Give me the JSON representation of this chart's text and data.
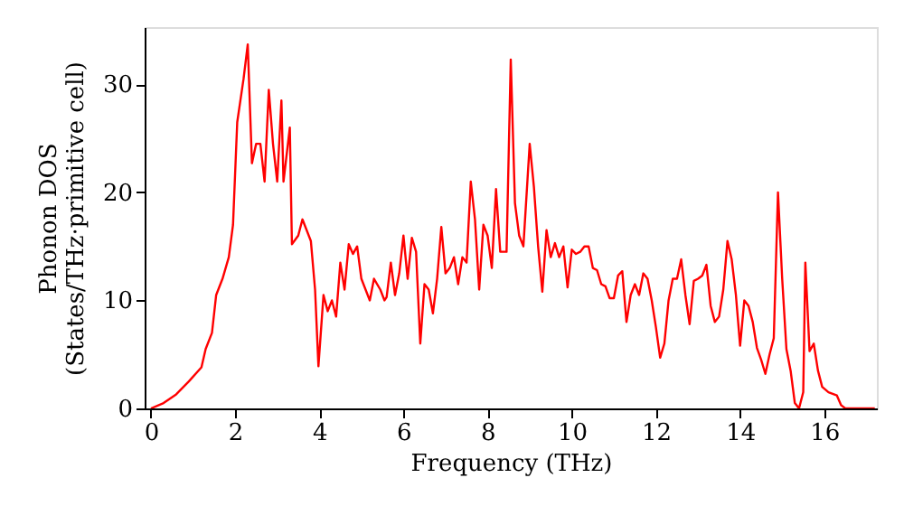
{
  "chart_data": {
    "type": "line",
    "xlabel": "Frequency (THz)",
    "ylabel": "Phonon DOS\n(States/THz·primitive cell)",
    "x": [
      0,
      0.3,
      0.6,
      0.9,
      1.2,
      1.3,
      1.45,
      1.55,
      1.7,
      1.85,
      1.95,
      2.05,
      2.2,
      2.3,
      2.4,
      2.5,
      2.6,
      2.7,
      2.8,
      2.9,
      3.0,
      3.1,
      3.15,
      3.3,
      3.35,
      3.5,
      3.6,
      3.7,
      3.8,
      3.9,
      3.98,
      4.1,
      4.2,
      4.3,
      4.4,
      4.5,
      4.6,
      4.7,
      4.8,
      4.9,
      5.0,
      5.1,
      5.2,
      5.3,
      5.45,
      5.55,
      5.6,
      5.7,
      5.8,
      5.9,
      6.0,
      6.1,
      6.2,
      6.3,
      6.4,
      6.5,
      6.6,
      6.7,
      6.8,
      6.9,
      7.0,
      7.1,
      7.2,
      7.3,
      7.4,
      7.5,
      7.6,
      7.7,
      7.8,
      7.9,
      8.0,
      8.1,
      8.2,
      8.3,
      8.45,
      8.55,
      8.65,
      8.75,
      8.85,
      9.0,
      9.1,
      9.2,
      9.3,
      9.4,
      9.5,
      9.6,
      9.7,
      9.8,
      9.9,
      10.0,
      10.1,
      10.2,
      10.3,
      10.4,
      10.5,
      10.6,
      10.7,
      10.8,
      10.9,
      11.0,
      11.1,
      11.2,
      11.3,
      11.4,
      11.5,
      11.6,
      11.7,
      11.8,
      11.9,
      12.0,
      12.1,
      12.2,
      12.3,
      12.4,
      12.5,
      12.6,
      12.7,
      12.8,
      12.9,
      13.0,
      13.1,
      13.2,
      13.3,
      13.4,
      13.5,
      13.6,
      13.7,
      13.8,
      13.9,
      14.0,
      14.1,
      14.2,
      14.3,
      14.4,
      14.5,
      14.6,
      14.7,
      14.8,
      14.9,
      15.0,
      15.1,
      15.2,
      15.3,
      15.4,
      15.5,
      15.55,
      15.65,
      15.75,
      15.85,
      15.95,
      16.1,
      16.3,
      16.4,
      16.5,
      17.2
    ],
    "series": [
      {
        "color": "#ff0000",
        "values": [
          0,
          0.5,
          1.3,
          2.5,
          3.8,
          5.5,
          7,
          10.5,
          12,
          14,
          17,
          26.5,
          30.5,
          33.7,
          22.7,
          24.5,
          24.5,
          21,
          29.5,
          24.5,
          21,
          28.5,
          21,
          26,
          15.2,
          16,
          17.5,
          16.5,
          15.5,
          11,
          3.9,
          10.5,
          9,
          10,
          8.5,
          13.5,
          11,
          15.2,
          14.3,
          15,
          12,
          11,
          10,
          12,
          11,
          10,
          10.3,
          13.5,
          10.5,
          12.5,
          16,
          12,
          15.8,
          14.5,
          6,
          11.5,
          11,
          8.8,
          12,
          16.8,
          12.5,
          13,
          14,
          11.5,
          14,
          13.5,
          21,
          17.5,
          11,
          17,
          16,
          13,
          20.3,
          14.5,
          14.5,
          32.3,
          19,
          16,
          15,
          24.5,
          20.5,
          15,
          10.8,
          16.5,
          14,
          15.3,
          14,
          15,
          11.2,
          14.7,
          14.3,
          14.5,
          15,
          15,
          13,
          12.8,
          11.5,
          11.3,
          10.2,
          10.2,
          12.3,
          12.7,
          8,
          10.5,
          11.5,
          10.5,
          12.5,
          12,
          10,
          7.5,
          4.7,
          6,
          10,
          12,
          12,
          13.8,
          10.5,
          7.8,
          11.8,
          12,
          12.3,
          13.3,
          9.5,
          8,
          8.5,
          11,
          15.5,
          13.8,
          10.5,
          5.8,
          10,
          9.5,
          8,
          5.6,
          4.5,
          3.2,
          5,
          6.5,
          20,
          12,
          5.5,
          3.5,
          0.5,
          0,
          1.5,
          13.5,
          5.3,
          6,
          3.5,
          2,
          1.5,
          1.2,
          0.3,
          0,
          0
        ]
      }
    ],
    "xlim": [
      -0.15,
      17.25
    ],
    "ylim": [
      0,
      35.3
    ],
    "xticks": [
      0,
      2,
      4,
      6,
      8,
      10,
      12,
      14,
      16
    ],
    "yticks": [
      0,
      10,
      20,
      30
    ],
    "grid": false,
    "line_style": "solid",
    "marker": "none"
  }
}
